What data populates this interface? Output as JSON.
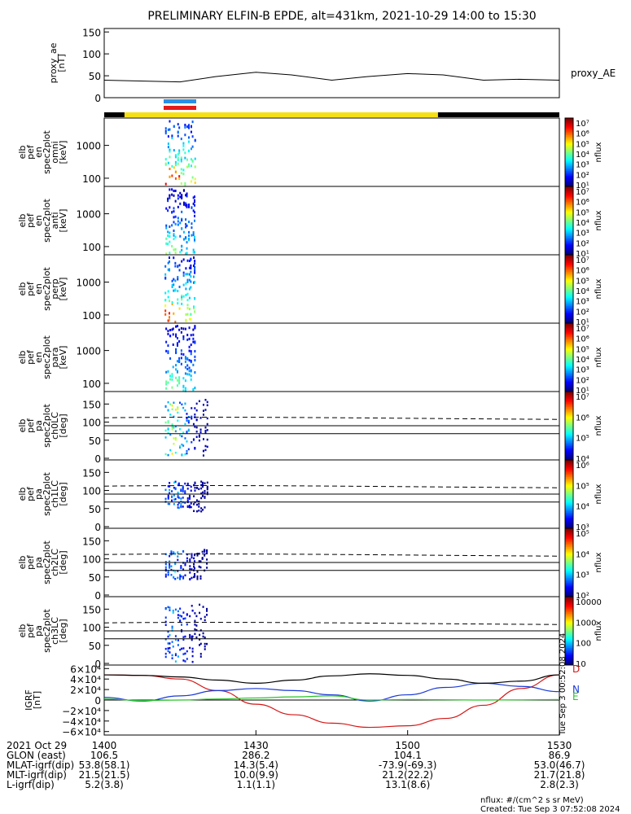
{
  "title": "PRELIMINARY ELFIN-B EPDE, alt=431km, 2021-10-29 14:00 to 15:30",
  "colors": {
    "science_zone_bar": "#f5e016",
    "dark_bar": "#000000",
    "marker_blue": "#2a8fe6",
    "marker_red": "#e21b1b",
    "grf_d": "#d41616",
    "grf_n": "#1a3ad6",
    "grf_e": "#27c427",
    "grf_total": "#000000"
  },
  "proxy_ae": {
    "ylabel_lines": [
      "proxy_ae",
      "[nT]"
    ],
    "yticks": [
      "150",
      "100",
      "50",
      "0"
    ],
    "legend": "proxy_AE"
  },
  "panels": [
    {
      "ylabel_lines": [
        "elb",
        "pef",
        "en",
        "spec2plot",
        "omni",
        "[keV]"
      ],
      "yticks": [
        "1000",
        "100"
      ],
      "cb_ticks": [
        "10⁷",
        "10⁶",
        "10⁵",
        "10⁴",
        "10³",
        "10²",
        "10¹"
      ],
      "cb_label": "nflux"
    },
    {
      "ylabel_lines": [
        "elb",
        "pef",
        "en",
        "spec2plot",
        "anti",
        "[keV]"
      ],
      "yticks": [
        "1000",
        "100"
      ],
      "cb_ticks": [
        "10⁷",
        "10⁶",
        "10⁵",
        "10⁴",
        "10³",
        "10²",
        "10¹"
      ],
      "cb_label": "nflux"
    },
    {
      "ylabel_lines": [
        "elb",
        "pef",
        "en",
        "spec2plot",
        "perp",
        "[keV]"
      ],
      "yticks": [
        "1000",
        "100"
      ],
      "cb_ticks": [
        "10⁷",
        "10⁶",
        "10⁵",
        "10⁴",
        "10³",
        "10²",
        "10¹"
      ],
      "cb_label": "nflux"
    },
    {
      "ylabel_lines": [
        "elb",
        "pef",
        "en",
        "spec2plot",
        "para",
        "[keV]"
      ],
      "yticks": [
        "1000",
        "100"
      ],
      "cb_ticks": [
        "10⁷",
        "10⁶",
        "10⁵",
        "10⁴",
        "10³",
        "10²",
        "10¹"
      ],
      "cb_label": "nflux"
    },
    {
      "ylabel_lines": [
        "elb",
        "pef",
        "pa",
        "spec2plot",
        "ch0LC",
        "[deg]"
      ],
      "yticks": [
        "150",
        "100",
        "50",
        "0"
      ],
      "cb_ticks": [
        "10⁷",
        "10⁶",
        "10⁵",
        "10⁴"
      ],
      "cb_label": "nflux"
    },
    {
      "ylabel_lines": [
        "elb",
        "pef",
        "pa",
        "spec2plot",
        "ch1LC",
        "[deg]"
      ],
      "yticks": [
        "150",
        "100",
        "50",
        "0"
      ],
      "cb_ticks": [
        "10⁶",
        "10⁵",
        "10⁴",
        "10³"
      ],
      "cb_label": "nflux"
    },
    {
      "ylabel_lines": [
        "elb",
        "pef",
        "pa",
        "spec2plot",
        "ch2LC",
        "[deg]"
      ],
      "yticks": [
        "150",
        "100",
        "50",
        "0"
      ],
      "cb_ticks": [
        "10⁵",
        "10⁴",
        "10³",
        "10²"
      ],
      "cb_label": "nflux"
    },
    {
      "ylabel_lines": [
        "elb",
        "pef",
        "pa",
        "spec2plot",
        "ch3LC",
        "[deg]"
      ],
      "yticks": [
        "150",
        "100",
        "50",
        "0"
      ],
      "cb_ticks": [
        "10000",
        "1000",
        "100",
        "10"
      ],
      "cb_label": "nflux"
    }
  ],
  "grf": {
    "ylabel_lines": [
      "IGRF",
      "[nT]"
    ],
    "yticks": [
      "6×10⁴",
      "4×10⁴",
      "2×10⁴",
      "0",
      "−2×10⁴",
      "−4×10⁴",
      "−6×10⁴"
    ],
    "legend": [
      "D",
      "N",
      "E"
    ],
    "side_note": "Tue Sep  3 00:52:08 2024"
  },
  "footer": {
    "rows": [
      {
        "label": "2021 Oct 29",
        "values": [
          "1400",
          "1430",
          "1500",
          "1530"
        ]
      },
      {
        "label": "GLON (east)",
        "values": [
          "106.5",
          "286.2",
          "104.1",
          "86.9"
        ]
      },
      {
        "label": "MLAT-igrf(dip)",
        "values": [
          "53.8(58.1)",
          "14.3(5.4)",
          "-73.9(-69.3)",
          "53.0(46.7)"
        ]
      },
      {
        "label": "MLT-igrf(dip)",
        "values": [
          "21.5(21.5)",
          "10.0(9.9)",
          "21.2(22.2)",
          "21.7(21.8)"
        ]
      },
      {
        "label": "L-igrf(dip)",
        "values": [
          "5.2(3.8)",
          "1.1(1.1)",
          "13.1(8.6)",
          "2.8(2.3)"
        ]
      }
    ],
    "units_note": "nflux: #/(cm^2 s sr MeV)",
    "created": "Created: Tue Sep  3 07:52:08 2024"
  },
  "chart_data": {
    "type": "line",
    "title": "PRELIMINARY ELFIN-B EPDE, alt=431km, 2021-10-29 14:00 to 15:30",
    "x_range_min": [
      0,
      90
    ],
    "xticks_hhmm": [
      "1400",
      "1430",
      "1500",
      "1530"
    ],
    "grid": false,
    "series": [
      {
        "name": "proxy_AE",
        "x_min": [
          0,
          7,
          15,
          22,
          30,
          37,
          45,
          52,
          60,
          67,
          75,
          82,
          90
        ],
        "values": [
          40,
          38,
          36,
          48,
          58,
          52,
          40,
          48,
          55,
          52,
          40,
          42,
          40
        ],
        "ylim": [
          0,
          150
        ]
      }
    ],
    "science_zone_min": [
      4,
      66
    ],
    "pa_reference_lines_deg": [
      90,
      68,
      112
    ],
    "igrf": {
      "ylim": [
        -60000,
        60000
      ],
      "x_min": [
        0,
        7.5,
        15,
        22.5,
        30,
        37.5,
        45,
        52.5,
        60,
        67.5,
        75,
        82.5,
        90
      ],
      "series": [
        {
          "name": "D",
          "values": [
            48000,
            47000,
            40000,
            18000,
            -8000,
            -28000,
            -44000,
            -52000,
            -49000,
            -35000,
            -10000,
            22000,
            48000
          ]
        },
        {
          "name": "N",
          "values": [
            5000,
            -2000,
            8000,
            18000,
            22000,
            18000,
            10000,
            -2000,
            10000,
            24000,
            32000,
            26000,
            16000
          ]
        },
        {
          "name": "E",
          "values": [
            2000,
            -1000,
            0,
            2000,
            4000,
            6000,
            8000,
            0,
            1000,
            500,
            0,
            300,
            1000
          ]
        },
        {
          "name": "total",
          "values": [
            48000,
            47000,
            44000,
            38000,
            32000,
            38000,
            46000,
            50000,
            47000,
            40000,
            32000,
            36000,
            48000
          ]
        }
      ]
    }
  }
}
